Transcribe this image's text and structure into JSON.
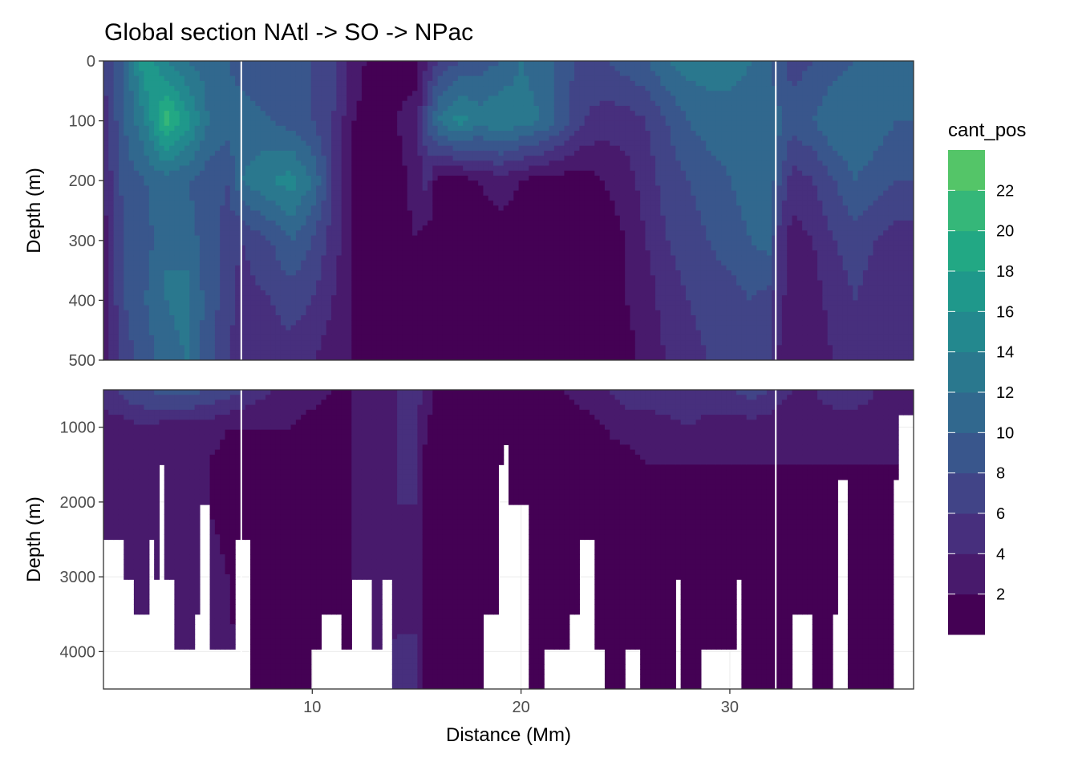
{
  "chart_data": {
    "type": "heatmap",
    "title": "Global section NAtl -> SO -> NPac",
    "xlabel": "Distance (Mm)",
    "ylabel": "Depth (m)",
    "xlim": [
      0,
      38.8
    ],
    "x_ticks": [
      10,
      20,
      30
    ],
    "section_dividers_x": [
      6.6,
      32.2
    ],
    "panels": [
      {
        "name": "upper",
        "ylim": [
          0,
          500
        ],
        "y_ticks": [
          0,
          100,
          200,
          300,
          400,
          500
        ]
      },
      {
        "name": "lower",
        "ylim": [
          500,
          4500
        ],
        "y_ticks": [
          1000,
          2000,
          3000,
          4000
        ]
      }
    ],
    "legend": {
      "title": "cant_pos",
      "position": "right",
      "breaks": [
        0,
        2,
        4,
        6,
        8,
        10,
        12,
        14,
        16,
        18,
        20,
        22,
        24
      ],
      "labels": [
        "2",
        "4",
        "6",
        "8",
        "10",
        "12",
        "14",
        "16",
        "18",
        "20",
        "22"
      ],
      "colors": [
        "#440154",
        "#481a6c",
        "#472f7d",
        "#414487",
        "#39568c",
        "#31688e",
        "#2a788e",
        "#23888e",
        "#1f988b",
        "#22a884",
        "#35b779",
        "#54c568",
        "#7ad151",
        "#a5db36",
        "#d2e21b",
        "#fde725"
      ]
    },
    "bins": [
      1,
      3,
      5,
      7,
      9,
      11,
      13,
      15,
      17,
      19,
      21,
      23
    ],
    "upper_profiles": {
      "note": "cant_pos vs distance at depths 0,100,200,300,400,500 m",
      "depths": [
        0,
        100,
        200,
        300,
        400,
        500
      ],
      "x": [
        0,
        1,
        2,
        3,
        4,
        5,
        6,
        6.6,
        8,
        9,
        10,
        11,
        12,
        13,
        14,
        15,
        15.5,
        16,
        17,
        18,
        19,
        20,
        21,
        22,
        23,
        24,
        25,
        26,
        27,
        28,
        29,
        30,
        31,
        32,
        32.2,
        33,
        34,
        35,
        36,
        37,
        38,
        38.8
      ],
      "values": [
        [
          6,
          10,
          18,
          14,
          12,
          11,
          10,
          9,
          8,
          9,
          8,
          7,
          3,
          1,
          1,
          1,
          4,
          6,
          8,
          9,
          10,
          12,
          11,
          9,
          7,
          8,
          9,
          10,
          12,
          13,
          13,
          13,
          12,
          10,
          9,
          7,
          8,
          9,
          10,
          11,
          10,
          10
        ],
        [
          5,
          10,
          14,
          21,
          17,
          12,
          11,
          11,
          10,
          9,
          8,
          6,
          2,
          1,
          2,
          3,
          8,
          12,
          15,
          13,
          14,
          13,
          12,
          9,
          6,
          5,
          5,
          6,
          8,
          10,
          11,
          11,
          11,
          11,
          11,
          9,
          10,
          12,
          12,
          11,
          10,
          10
        ],
        [
          4,
          9,
          10,
          11,
          10,
          9,
          8,
          12,
          14,
          15,
          12,
          6,
          2,
          1,
          1,
          3,
          5,
          1,
          1,
          2,
          3,
          2,
          1,
          1,
          1,
          2,
          3,
          5,
          7,
          8,
          9,
          10,
          11,
          12,
          9,
          5,
          6,
          8,
          10,
          9,
          8,
          8
        ],
        [
          3,
          8,
          9,
          12,
          11,
          9,
          7,
          6,
          8,
          10,
          8,
          5,
          2,
          1,
          1,
          2,
          1,
          1,
          1,
          1,
          1,
          1,
          1,
          1,
          1,
          1,
          2,
          4,
          6,
          7,
          8,
          9,
          10,
          11,
          6,
          3,
          4,
          6,
          7,
          6,
          5,
          5
        ],
        [
          3,
          8,
          10,
          12,
          13,
          9,
          7,
          5,
          6,
          7,
          6,
          4,
          2,
          1,
          1,
          1,
          1,
          1,
          1,
          1,
          1,
          1,
          1,
          1,
          1,
          1,
          2,
          3,
          5,
          6,
          7,
          7,
          8,
          7,
          5,
          3,
          3,
          5,
          6,
          5,
          4,
          4
        ],
        [
          3,
          7,
          9,
          11,
          12,
          9,
          6,
          4,
          5,
          5,
          4,
          3,
          2,
          1,
          1,
          1,
          1,
          1,
          1,
          1,
          1,
          1,
          1,
          1,
          1,
          1,
          1,
          3,
          4,
          5,
          6,
          6,
          7,
          6,
          4,
          3,
          3,
          4,
          5,
          4,
          4,
          4
        ]
      ]
    },
    "lower_profiles": {
      "note": "cant_pos vs distance at depths 500,1000,1500,2000,3000,4500 m",
      "depths": [
        500,
        1000,
        1500,
        2000,
        3000,
        4500
      ],
      "x": [
        0,
        1,
        2,
        3,
        4,
        5,
        6,
        6.6,
        8,
        9,
        10,
        11,
        12,
        13,
        14,
        15,
        15.5,
        16,
        17,
        18,
        19,
        20,
        21,
        22,
        23,
        24,
        25,
        26,
        27,
        28,
        29,
        30,
        31,
        32,
        32.2,
        33,
        34,
        35,
        36,
        37,
        38,
        38.8
      ],
      "values": [
        [
          5,
          7,
          8,
          9,
          9,
          8,
          7,
          6,
          4,
          3,
          3,
          2,
          2,
          3,
          4,
          5,
          3,
          1,
          1,
          1,
          1,
          1,
          1,
          2,
          3,
          4,
          5,
          5,
          6,
          6,
          6,
          6,
          7,
          6,
          5,
          4,
          4,
          5,
          5,
          4,
          4,
          4
        ],
        [
          3,
          3,
          4,
          3,
          3,
          3,
          2,
          2,
          2,
          2,
          1,
          1,
          2,
          3,
          4,
          4,
          2,
          1,
          1,
          1,
          1,
          1,
          1,
          1,
          1,
          2,
          3,
          3,
          3,
          4,
          3,
          3,
          3,
          3,
          3,
          3,
          3,
          3,
          3,
          3,
          3,
          3
        ],
        [
          3,
          3,
          3,
          3,
          2,
          2,
          1,
          1,
          1,
          1,
          1,
          1,
          2,
          3,
          4,
          4,
          1,
          1,
          1,
          1,
          1,
          1,
          1,
          1,
          1,
          1,
          1,
          2,
          2,
          2,
          2,
          2,
          2,
          2,
          2,
          2,
          2,
          2,
          2,
          2,
          2,
          2
        ],
        [
          3,
          3,
          3,
          3,
          2,
          2,
          1,
          1,
          1,
          1,
          1,
          1,
          2,
          3,
          4,
          4,
          1,
          1,
          1,
          1,
          1,
          1,
          1,
          1,
          1,
          1,
          1,
          1,
          1,
          1,
          1,
          1,
          1,
          1,
          1,
          1,
          1,
          1,
          1,
          1,
          1,
          1
        ],
        [
          3,
          3,
          3,
          3,
          3,
          3,
          2,
          1,
          1,
          1,
          1,
          1,
          2,
          3,
          3,
          3,
          1,
          1,
          1,
          1,
          1,
          1,
          1,
          1,
          1,
          1,
          1,
          1,
          1,
          1,
          1,
          1,
          1,
          1,
          1,
          1,
          1,
          1,
          1,
          1,
          1,
          1
        ],
        [
          3,
          3,
          3,
          3,
          3,
          3,
          3,
          1,
          1,
          1,
          1,
          1,
          2,
          2,
          5,
          5,
          1,
          1,
          1,
          1,
          1,
          1,
          1,
          1,
          1,
          1,
          1,
          1,
          1,
          1,
          1,
          1,
          1,
          1,
          1,
          1,
          1,
          1,
          1,
          1,
          1,
          1
        ]
      ]
    },
    "bottom_depth_m": [
      [
        0.1,
        2500
      ],
      [
        1,
        3000
      ],
      [
        1.4,
        3500
      ],
      [
        2.1,
        2500
      ],
      [
        2.5,
        3000
      ],
      [
        2.7,
        1500
      ],
      [
        2.9,
        3000
      ],
      [
        3.4,
        4000
      ],
      [
        4.3,
        3500
      ],
      [
        4.5,
        2000
      ],
      [
        5.0,
        4000
      ],
      [
        5.7,
        4000
      ],
      [
        6.3,
        2500
      ],
      [
        7.0,
        4500
      ],
      [
        10.0,
        4000
      ],
      [
        10.5,
        3500
      ],
      [
        11.5,
        4000
      ],
      [
        12.0,
        3000
      ],
      [
        12.8,
        4000
      ],
      [
        13.3,
        3000
      ],
      [
        13.8,
        4500
      ],
      [
        18.2,
        3500
      ],
      [
        18.8,
        1500
      ],
      [
        19.1,
        1200
      ],
      [
        19.5,
        2000
      ],
      [
        20.3,
        4500
      ],
      [
        21.2,
        4000
      ],
      [
        22.3,
        3500
      ],
      [
        22.9,
        2500
      ],
      [
        23.5,
        4000
      ],
      [
        24.1,
        4500
      ],
      [
        25.0,
        4000
      ],
      [
        25.8,
        4500
      ],
      [
        27.3,
        3000
      ],
      [
        27.6,
        4500
      ],
      [
        28.5,
        4000
      ],
      [
        30.2,
        3000
      ],
      [
        30.6,
        4500
      ],
      [
        32.5,
        4500
      ],
      [
        33.1,
        3500
      ],
      [
        33.9,
        4500
      ],
      [
        34.8,
        3500
      ],
      [
        35.1,
        1700
      ],
      [
        35.6,
        4500
      ],
      [
        37.8,
        1700
      ],
      [
        38.1,
        800
      ],
      [
        38.8,
        500
      ]
    ]
  }
}
